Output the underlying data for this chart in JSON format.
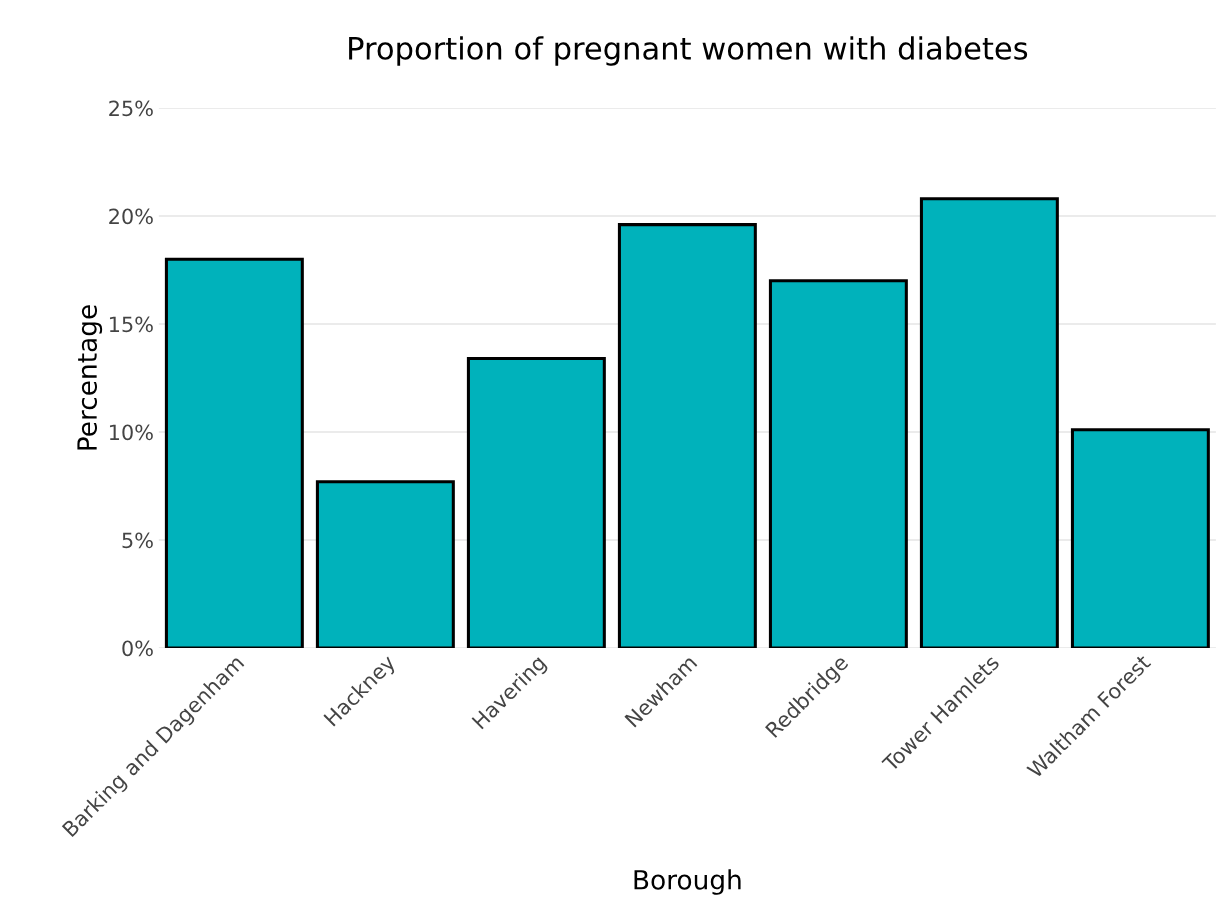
{
  "chart_data": {
    "type": "bar",
    "title": "Proportion of pregnant women with diabetes",
    "xlabel": "Borough",
    "ylabel": "Percentage",
    "categories": [
      "Barking and Dagenham",
      "Hackney",
      "Havering",
      "Newham",
      "Redbridge",
      "Tower Hamlets",
      "Waltham Forest"
    ],
    "values": [
      18.0,
      7.7,
      13.4,
      19.6,
      17.0,
      20.8,
      10.1
    ],
    "color": "#00b2bb",
    "ylim": [
      0,
      25
    ],
    "yticks": [
      {
        "value": 0,
        "label": "0%"
      },
      {
        "value": 5,
        "label": "5%"
      },
      {
        "value": 10,
        "label": "10%"
      },
      {
        "value": 15,
        "label": "15%"
      },
      {
        "value": 20,
        "label": "20%"
      },
      {
        "value": 25,
        "label": "25%"
      }
    ],
    "grid": "y"
  }
}
